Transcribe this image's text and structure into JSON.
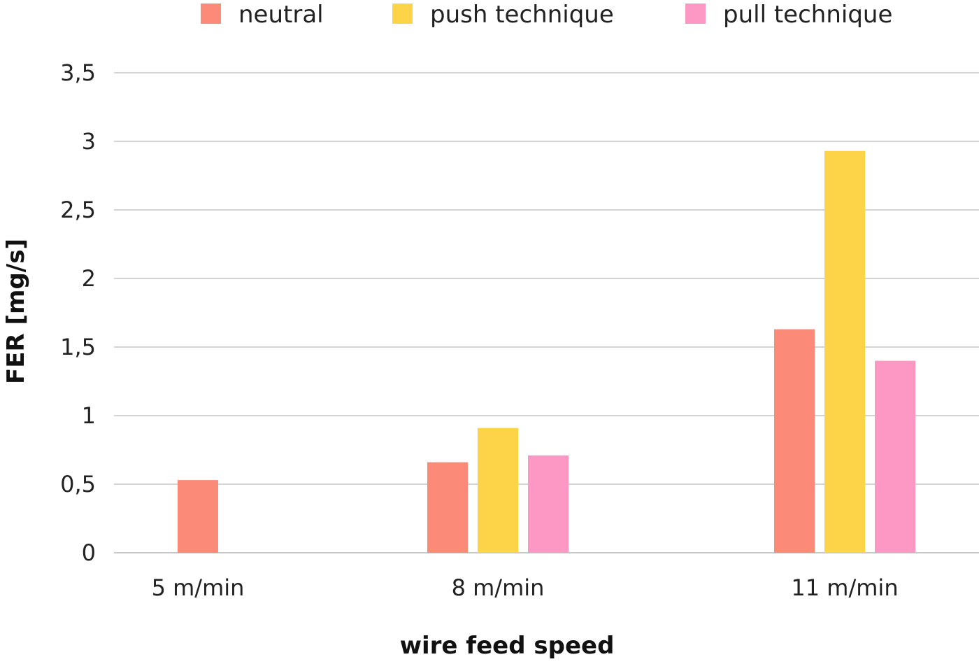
{
  "chart_data": {
    "type": "bar",
    "categories": [
      "5 m/min",
      "8 m/min",
      "11 m/min"
    ],
    "series": [
      {
        "name": "neutral",
        "color": "#fb8a78",
        "values": [
          0.53,
          0.66,
          1.63
        ]
      },
      {
        "name": "push technique",
        "color": "#fdd447",
        "values": [
          null,
          0.91,
          2.93
        ]
      },
      {
        "name": "pull technique",
        "color": "#fd98c5",
        "values": [
          null,
          0.71,
          1.4
        ]
      }
    ],
    "xlabel": "wire feed speed",
    "ylabel": "FER [mg/s]",
    "ylim": [
      0,
      3.5
    ],
    "yticks": [
      "0",
      "0,5",
      "1",
      "1,5",
      "2",
      "2,5",
      "3",
      "3,5"
    ],
    "grid": true,
    "legend": "top"
  }
}
